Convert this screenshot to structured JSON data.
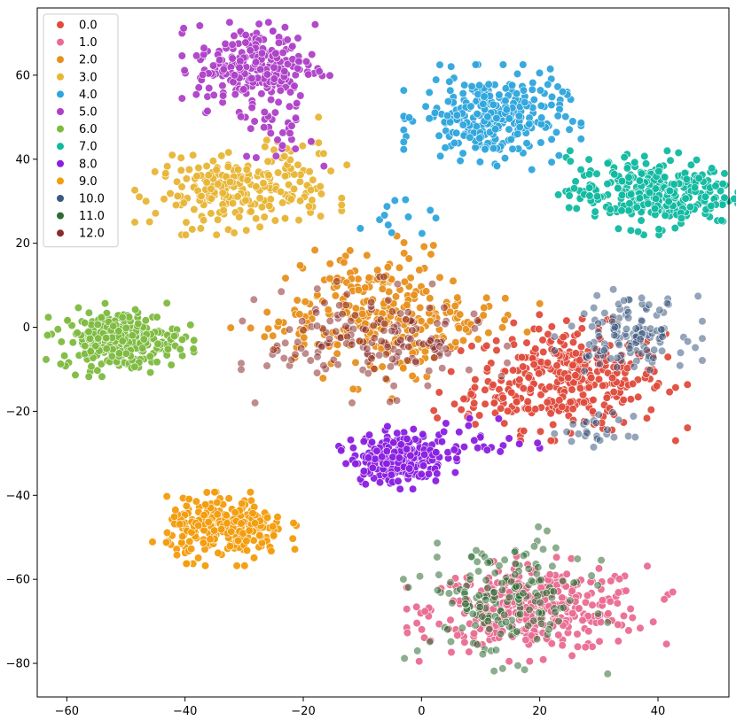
{
  "chart_data": {
    "type": "scatter",
    "title": "",
    "xlabel": "",
    "ylabel": "",
    "xlim": [
      -65,
      52
    ],
    "ylim": [
      -88,
      76
    ],
    "x_ticks": [
      -60,
      -40,
      -20,
      0,
      20,
      40
    ],
    "y_ticks": [
      60,
      40,
      20,
      0,
      -20,
      -40,
      -60,
      -80
    ],
    "x_tick_labels": [
      "−60",
      "−40",
      "−20",
      "0",
      "20",
      "40"
    ],
    "y_tick_labels": [
      "60",
      "40",
      "20",
      "0",
      "−20",
      "−40",
      "−60",
      "−80"
    ],
    "grid": false,
    "legend_position": "top-left",
    "series": [
      {
        "name": "0.0",
        "color": "#e04b3c",
        "clusters": [
          {
            "cx": 25,
            "cy": -12,
            "sx": 8,
            "sy": 6,
            "n": 330
          },
          {
            "cx": 10,
            "cy": -18,
            "sx": 5,
            "sy": 3,
            "n": 25
          }
        ]
      },
      {
        "name": "1.0",
        "color": "#ea6c91",
        "clusters": [
          {
            "cx": 20,
            "cy": -67,
            "sx": 9,
            "sy": 5,
            "n": 320
          },
          {
            "cx": 10,
            "cy": -68,
            "sx": 5,
            "sy": 4,
            "n": 40
          }
        ]
      },
      {
        "name": "2.0",
        "color": "#e8901c",
        "clusters": [
          {
            "cx": -8,
            "cy": 3,
            "sx": 6,
            "sy": 8,
            "n": 220
          },
          {
            "cx": 5,
            "cy": 2,
            "sx": 6,
            "sy": 3,
            "n": 50
          },
          {
            "cx": -22,
            "cy": 0,
            "sx": 6,
            "sy": 2,
            "n": 25
          }
        ]
      },
      {
        "name": "3.0",
        "color": "#e8b535",
        "clusters": [
          {
            "cx": -31,
            "cy": 32,
            "sx": 7,
            "sy": 4,
            "n": 210
          },
          {
            "cx": -22,
            "cy": 40,
            "sx": 4,
            "sy": 4,
            "n": 30
          }
        ]
      },
      {
        "name": "4.0",
        "color": "#2ea5dc",
        "clusters": [
          {
            "cx": 12,
            "cy": 50,
            "sx": 6,
            "sy": 5,
            "n": 280
          },
          {
            "cx": -5,
            "cy": 25,
            "sx": 4,
            "sy": 3,
            "n": 12
          }
        ]
      },
      {
        "name": "5.0",
        "color": "#ae40c8",
        "clusters": [
          {
            "cx": -28,
            "cy": 62,
            "sx": 5,
            "sy": 5,
            "n": 240
          },
          {
            "cx": -24,
            "cy": 47,
            "sx": 3,
            "sy": 4,
            "n": 30
          }
        ]
      },
      {
        "name": "6.0",
        "color": "#7dba3f",
        "clusters": [
          {
            "cx": -51,
            "cy": -3,
            "sx": 5,
            "sy": 3.5,
            "n": 270
          }
        ]
      },
      {
        "name": "7.0",
        "color": "#10b9a0",
        "clusters": [
          {
            "cx": 39,
            "cy": 32,
            "sx": 7,
            "sy": 4,
            "n": 320
          }
        ]
      },
      {
        "name": "8.0",
        "color": "#8a1fe0",
        "clusters": [
          {
            "cx": -4,
            "cy": -31,
            "sx": 4,
            "sy": 3,
            "n": 230
          },
          {
            "cx": 10,
            "cy": -27,
            "sx": 4,
            "sy": 3,
            "n": 25
          }
        ]
      },
      {
        "name": "9.0",
        "color": "#f39c0c",
        "clusters": [
          {
            "cx": -33,
            "cy": -48,
            "sx": 5,
            "sy": 3.5,
            "n": 280
          }
        ]
      },
      {
        "name": "10.0",
        "color": "#3c5a80",
        "clusters": [
          {
            "cx": 35,
            "cy": -1,
            "sx": 5,
            "sy": 4,
            "n": 130
          },
          {
            "cx": 30,
            "cy": -25,
            "sx": 3,
            "sy": 2,
            "n": 25
          }
        ]
      },
      {
        "name": "11.0",
        "color": "#2e6b32",
        "clusters": [
          {
            "cx": 14,
            "cy": -65,
            "sx": 7,
            "sy": 7,
            "n": 180
          }
        ]
      },
      {
        "name": "12.0",
        "color": "#8b2c2c",
        "clusters": [
          {
            "cx": -8,
            "cy": -3,
            "sx": 9,
            "sy": 6,
            "n": 170
          }
        ]
      }
    ]
  }
}
